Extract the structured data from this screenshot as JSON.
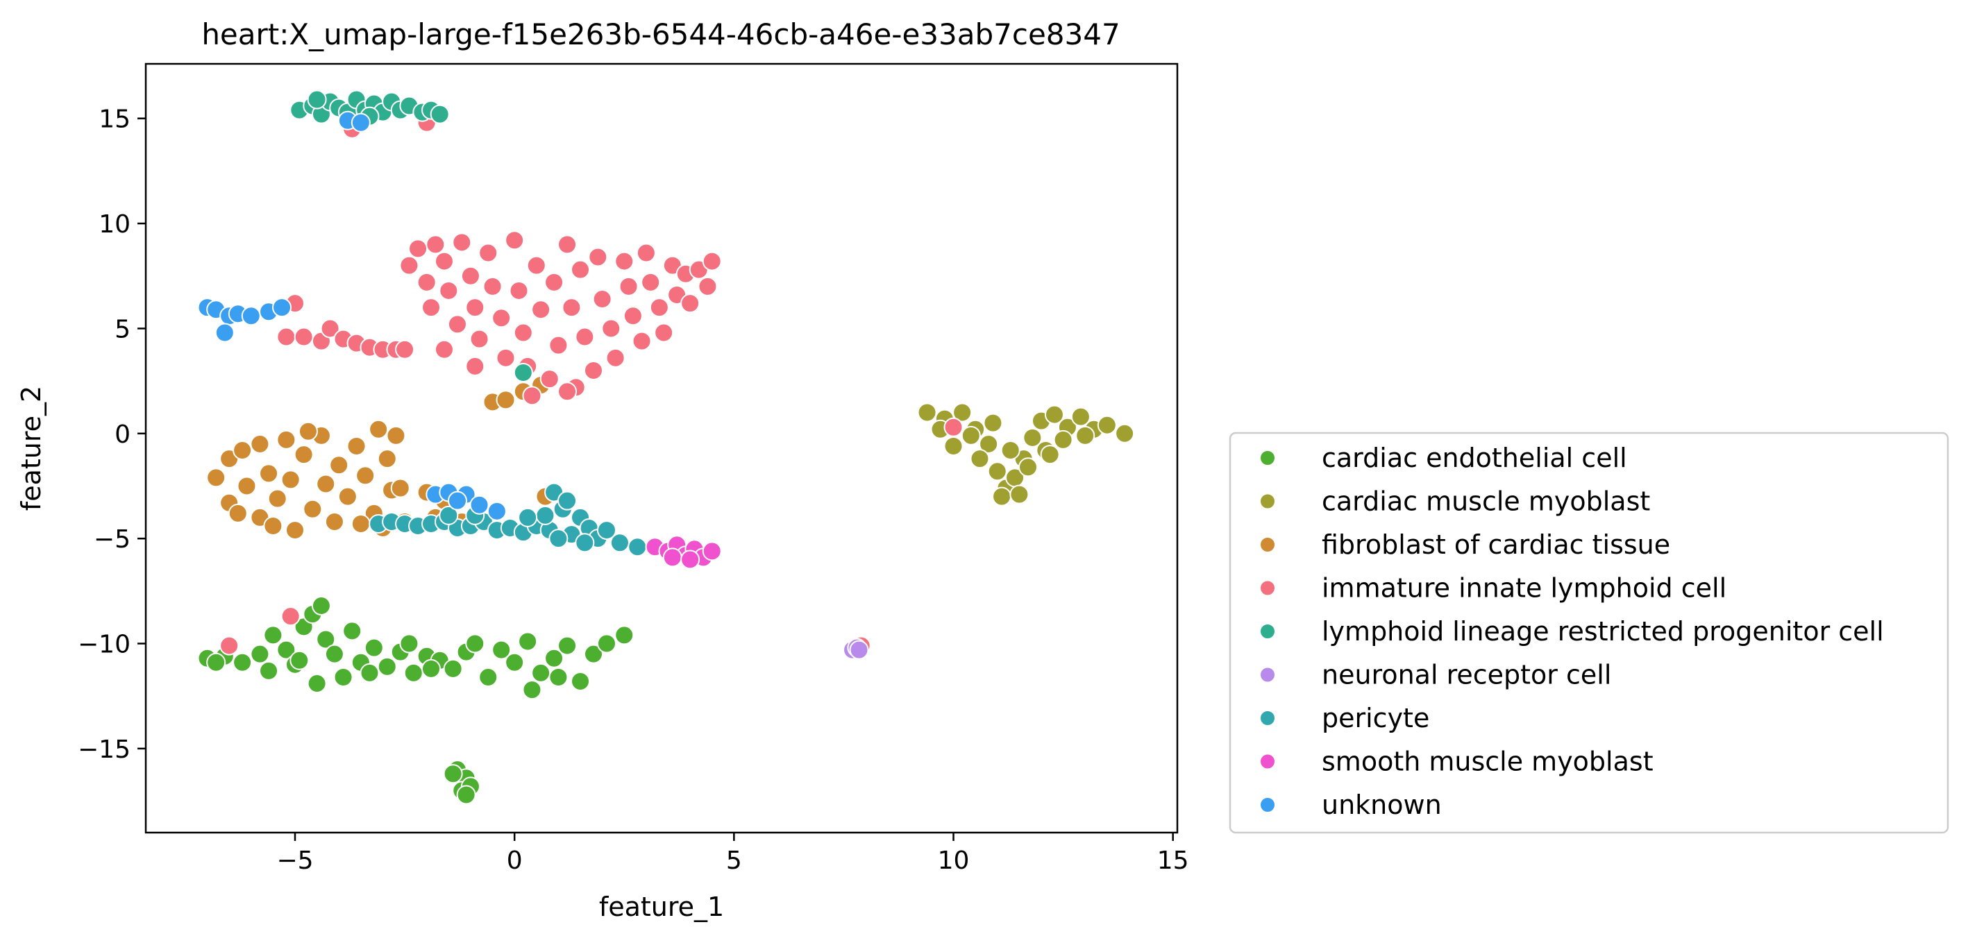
{
  "chart_data": {
    "type": "scatter",
    "title": "heart:X_umap-large-f15e263b-6544-46cb-a46e-e33ab7ce8347",
    "xlabel": "feature_1",
    "ylabel": "feature_2",
    "xlim": [
      -8.4,
      15.1
    ],
    "ylim": [
      -19.0,
      17.6
    ],
    "xticks": [
      -5,
      0,
      5,
      10,
      15
    ],
    "yticks": [
      -15,
      -10,
      -5,
      0,
      5,
      10,
      15
    ],
    "xtick_labels": [
      "−5",
      "0",
      "5",
      "10",
      "15"
    ],
    "ytick_labels": [
      "−15",
      "−10",
      "−5",
      "0",
      "5",
      "10",
      "15"
    ],
    "grid": false,
    "legend_position": "outside-right-bottom",
    "series": [
      {
        "name": "cardiac endothelial cell",
        "color": "#4daf2f",
        "points": [
          [
            -7.0,
            -10.7
          ],
          [
            -6.6,
            -10.6
          ],
          [
            -6.2,
            -10.9
          ],
          [
            -5.8,
            -10.5
          ],
          [
            -5.5,
            -9.6
          ],
          [
            -5.2,
            -10.3
          ],
          [
            -5.0,
            -11.0
          ],
          [
            -4.8,
            -9.2
          ],
          [
            -4.6,
            -8.6
          ],
          [
            -4.4,
            -8.2
          ],
          [
            -4.3,
            -9.8
          ],
          [
            -4.1,
            -10.5
          ],
          [
            -3.9,
            -11.6
          ],
          [
            -3.7,
            -9.4
          ],
          [
            -3.5,
            -10.9
          ],
          [
            -3.2,
            -10.2
          ],
          [
            -2.9,
            -11.1
          ],
          [
            -2.6,
            -10.4
          ],
          [
            -2.3,
            -11.4
          ],
          [
            -2.0,
            -10.6
          ],
          [
            -1.7,
            -10.8
          ],
          [
            -1.4,
            -11.2
          ],
          [
            -1.1,
            -10.4
          ],
          [
            -0.9,
            -10.0
          ],
          [
            -0.6,
            -11.6
          ],
          [
            -0.3,
            -10.3
          ],
          [
            0.0,
            -10.9
          ],
          [
            0.3,
            -9.9
          ],
          [
            0.6,
            -11.4
          ],
          [
            0.9,
            -10.7
          ],
          [
            1.2,
            -10.1
          ],
          [
            1.5,
            -11.8
          ],
          [
            1.8,
            -10.5
          ],
          [
            2.1,
            -10.0
          ],
          [
            2.5,
            -9.6
          ],
          [
            -5.6,
            -11.3
          ],
          [
            -4.9,
            -10.8
          ],
          [
            -4.5,
            -11.9
          ],
          [
            -3.3,
            -11.4
          ],
          [
            -1.9,
            -11.2
          ],
          [
            0.4,
            -12.2
          ],
          [
            1.0,
            -11.6
          ],
          [
            -6.8,
            -10.9
          ],
          [
            -2.4,
            -10.0
          ],
          [
            -1.3,
            -16.0
          ],
          [
            -1.1,
            -16.4
          ],
          [
            -1.2,
            -17.0
          ],
          [
            -1.0,
            -16.8
          ],
          [
            -1.4,
            -16.2
          ],
          [
            -1.1,
            -17.2
          ]
        ]
      },
      {
        "name": "cardiac muscle myoblast",
        "color": "#a0a030",
        "points": [
          [
            9.4,
            1.0
          ],
          [
            9.8,
            0.7
          ],
          [
            10.2,
            1.0
          ],
          [
            10.5,
            0.2
          ],
          [
            10.8,
            -0.5
          ],
          [
            11.0,
            -1.8
          ],
          [
            11.2,
            -2.6
          ],
          [
            11.4,
            -2.1
          ],
          [
            11.6,
            -1.2
          ],
          [
            11.8,
            -0.2
          ],
          [
            12.0,
            0.6
          ],
          [
            12.3,
            0.9
          ],
          [
            12.6,
            0.3
          ],
          [
            12.9,
            0.8
          ],
          [
            13.2,
            0.2
          ],
          [
            13.5,
            0.4
          ],
          [
            13.9,
            0.0
          ],
          [
            10.0,
            -0.6
          ],
          [
            10.6,
            -1.2
          ],
          [
            11.1,
            -3.0
          ],
          [
            11.5,
            -2.9
          ],
          [
            12.1,
            -0.8
          ],
          [
            12.5,
            -0.3
          ],
          [
            10.9,
            0.5
          ],
          [
            11.3,
            -0.8
          ],
          [
            11.7,
            -1.6
          ],
          [
            12.2,
            -1.0
          ],
          [
            13.0,
            -0.1
          ],
          [
            9.7,
            0.2
          ],
          [
            10.4,
            -0.1
          ]
        ]
      },
      {
        "name": "fibroblast of cardiac tissue",
        "color": "#cf8a32",
        "points": [
          [
            -6.8,
            -2.1
          ],
          [
            -6.5,
            -1.2
          ],
          [
            -6.5,
            -3.3
          ],
          [
            -6.2,
            -0.8
          ],
          [
            -6.1,
            -2.5
          ],
          [
            -5.8,
            -4.0
          ],
          [
            -5.8,
            -0.5
          ],
          [
            -5.6,
            -1.9
          ],
          [
            -5.4,
            -3.1
          ],
          [
            -5.2,
            -0.3
          ],
          [
            -5.1,
            -2.2
          ],
          [
            -5.0,
            -4.6
          ],
          [
            -4.8,
            -1.0
          ],
          [
            -4.6,
            -3.6
          ],
          [
            -4.4,
            -0.1
          ],
          [
            -4.3,
            -2.4
          ],
          [
            -4.1,
            -4.2
          ],
          [
            -4.0,
            -1.5
          ],
          [
            -3.8,
            -3.0
          ],
          [
            -3.6,
            -0.6
          ],
          [
            -3.4,
            -2.0
          ],
          [
            -3.2,
            -3.8
          ],
          [
            -3.1,
            0.2
          ],
          [
            -2.9,
            -1.2
          ],
          [
            -2.8,
            -2.7
          ],
          [
            -3.0,
            -4.5
          ],
          [
            -2.7,
            -0.1
          ],
          [
            -2.6,
            -2.6
          ],
          [
            -5.5,
            -4.4
          ],
          [
            -4.7,
            0.1
          ],
          [
            -6.3,
            -3.8
          ],
          [
            -3.5,
            -4.3
          ],
          [
            -2.0,
            -2.8
          ],
          [
            -1.6,
            -3.2
          ],
          [
            -1.2,
            -4.2
          ],
          [
            -0.5,
            1.5
          ],
          [
            -0.2,
            1.6
          ],
          [
            0.2,
            2.0
          ],
          [
            0.6,
            2.3
          ],
          [
            0.7,
            -3.0
          ],
          [
            -2.5,
            -4.2
          ],
          [
            -1.8,
            -4.0
          ]
        ]
      },
      {
        "name": "immature innate lymphoid cell",
        "color": "#f5707f",
        "points": [
          [
            -2.4,
            8.0
          ],
          [
            -2.2,
            8.8
          ],
          [
            -2.0,
            7.2
          ],
          [
            -1.8,
            9.0
          ],
          [
            -1.6,
            8.2
          ],
          [
            -1.5,
            6.8
          ],
          [
            -1.3,
            5.2
          ],
          [
            -1.2,
            9.1
          ],
          [
            -1.0,
            7.5
          ],
          [
            -0.9,
            6.0
          ],
          [
            -0.8,
            4.5
          ],
          [
            -0.6,
            8.6
          ],
          [
            -0.5,
            7.0
          ],
          [
            -0.3,
            5.5
          ],
          [
            -0.2,
            3.6
          ],
          [
            0.0,
            9.2
          ],
          [
            0.1,
            6.8
          ],
          [
            0.2,
            4.8
          ],
          [
            0.3,
            3.2
          ],
          [
            0.5,
            8.0
          ],
          [
            0.6,
            5.9
          ],
          [
            0.8,
            2.6
          ],
          [
            0.9,
            7.2
          ],
          [
            1.0,
            4.2
          ],
          [
            1.2,
            9.0
          ],
          [
            1.3,
            6.0
          ],
          [
            1.4,
            2.2
          ],
          [
            1.5,
            7.8
          ],
          [
            1.6,
            4.6
          ],
          [
            1.8,
            3.0
          ],
          [
            1.9,
            8.4
          ],
          [
            2.0,
            6.4
          ],
          [
            2.2,
            5.0
          ],
          [
            2.3,
            3.6
          ],
          [
            2.5,
            8.2
          ],
          [
            2.6,
            7.0
          ],
          [
            2.7,
            5.6
          ],
          [
            2.9,
            4.4
          ],
          [
            3.0,
            8.6
          ],
          [
            3.1,
            7.2
          ],
          [
            3.3,
            6.0
          ],
          [
            3.4,
            4.8
          ],
          [
            3.6,
            8.0
          ],
          [
            3.7,
            6.6
          ],
          [
            3.9,
            7.6
          ],
          [
            4.0,
            6.2
          ],
          [
            4.2,
            7.8
          ],
          [
            4.4,
            7.0
          ],
          [
            4.5,
            8.2
          ],
          [
            -1.6,
            4.0
          ],
          [
            -0.9,
            3.2
          ],
          [
            1.2,
            2.0
          ],
          [
            -1.9,
            6.0
          ],
          [
            0.4,
            1.8
          ],
          [
            -5.2,
            4.6
          ],
          [
            -4.8,
            4.6
          ],
          [
            -4.4,
            4.4
          ],
          [
            -4.2,
            5.0
          ],
          [
            -3.9,
            4.5
          ],
          [
            -3.6,
            4.3
          ],
          [
            -3.3,
            4.1
          ],
          [
            -3.0,
            4.0
          ],
          [
            -2.7,
            4.0
          ],
          [
            -2.5,
            4.0
          ],
          [
            -5.0,
            6.2
          ],
          [
            -3.7,
            14.5
          ],
          [
            -2.0,
            14.8
          ],
          [
            -6.5,
            -10.1
          ],
          [
            7.9,
            -10.1
          ],
          [
            10.0,
            0.3
          ],
          [
            -5.1,
            -8.7
          ]
        ]
      },
      {
        "name": "lymphoid lineage restricted progenitor cell",
        "color": "#2fae8f",
        "points": [
          [
            -4.9,
            15.4
          ],
          [
            -4.6,
            15.6
          ],
          [
            -4.4,
            15.2
          ],
          [
            -4.2,
            15.8
          ],
          [
            -4.0,
            15.5
          ],
          [
            -3.8,
            15.3
          ],
          [
            -3.6,
            15.9
          ],
          [
            -3.4,
            15.4
          ],
          [
            -3.2,
            15.7
          ],
          [
            -3.0,
            15.3
          ],
          [
            -2.8,
            15.8
          ],
          [
            -2.6,
            15.4
          ],
          [
            -2.4,
            15.6
          ],
          [
            -2.1,
            15.3
          ],
          [
            -1.9,
            15.4
          ],
          [
            -1.7,
            15.2
          ],
          [
            -4.5,
            15.9
          ],
          [
            -3.3,
            15.1
          ],
          [
            0.2,
            2.9
          ]
        ]
      },
      {
        "name": "neuronal receptor cell",
        "color": "#b88aeb",
        "points": [
          [
            7.7,
            -10.3
          ],
          [
            7.8,
            -10.2
          ],
          [
            7.85,
            -10.3
          ]
        ]
      },
      {
        "name": "pericyte",
        "color": "#31a7b0",
        "points": [
          [
            -3.1,
            -4.3
          ],
          [
            -2.8,
            -4.2
          ],
          [
            -2.5,
            -4.3
          ],
          [
            -2.2,
            -4.4
          ],
          [
            -1.9,
            -4.3
          ],
          [
            -1.6,
            -4.2
          ],
          [
            -1.3,
            -4.5
          ],
          [
            -1.0,
            -4.4
          ],
          [
            -0.7,
            -4.2
          ],
          [
            -0.4,
            -4.6
          ],
          [
            -0.1,
            -4.5
          ],
          [
            0.2,
            -4.7
          ],
          [
            0.5,
            -4.4
          ],
          [
            0.8,
            -4.6
          ],
          [
            0.9,
            -2.8
          ],
          [
            1.1,
            -3.6
          ],
          [
            1.3,
            -4.8
          ],
          [
            1.5,
            -4.0
          ],
          [
            1.7,
            -4.5
          ],
          [
            1.9,
            -5.0
          ],
          [
            2.1,
            -4.6
          ],
          [
            2.4,
            -5.2
          ],
          [
            2.8,
            -5.4
          ],
          [
            1.2,
            -3.2
          ],
          [
            0.7,
            -3.9
          ],
          [
            -0.9,
            -3.9
          ],
          [
            -1.5,
            -3.9
          ],
          [
            0.3,
            -4.0
          ],
          [
            1.0,
            -5.0
          ],
          [
            1.6,
            -5.2
          ]
        ]
      },
      {
        "name": "smooth muscle myoblast",
        "color": "#f052cf",
        "points": [
          [
            3.2,
            -5.4
          ],
          [
            3.5,
            -5.6
          ],
          [
            3.7,
            -5.3
          ],
          [
            3.9,
            -5.8
          ],
          [
            4.1,
            -5.5
          ],
          [
            4.3,
            -5.9
          ],
          [
            4.5,
            -5.6
          ],
          [
            3.6,
            -5.9
          ],
          [
            4.0,
            -6.0
          ]
        ]
      },
      {
        "name": "unknown",
        "color": "#3a9ff0",
        "points": [
          [
            -7.0,
            6.0
          ],
          [
            -6.8,
            5.9
          ],
          [
            -6.5,
            5.6
          ],
          [
            -6.3,
            5.7
          ],
          [
            -6.0,
            5.6
          ],
          [
            -5.6,
            5.8
          ],
          [
            -5.3,
            6.0
          ],
          [
            -6.6,
            4.8
          ],
          [
            -3.8,
            14.9
          ],
          [
            -3.5,
            14.8
          ],
          [
            -1.8,
            -2.9
          ],
          [
            -1.5,
            -2.8
          ],
          [
            -1.1,
            -2.9
          ],
          [
            -0.8,
            -3.4
          ],
          [
            -0.4,
            -3.7
          ],
          [
            -1.3,
            -3.2
          ]
        ]
      }
    ]
  }
}
